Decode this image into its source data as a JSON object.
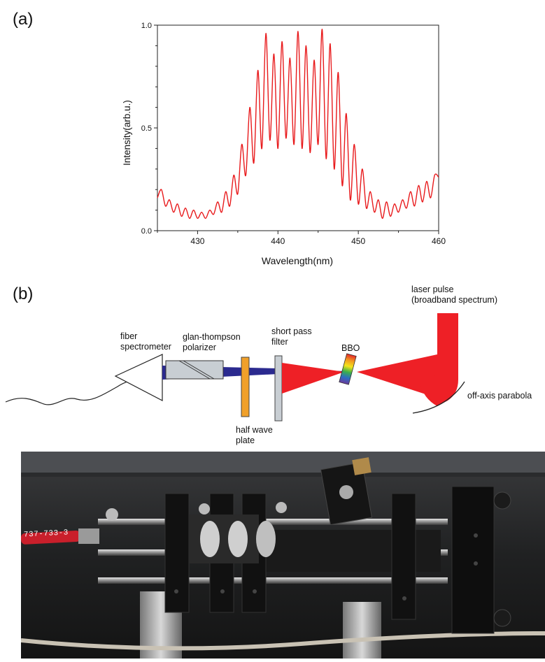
{
  "panels": {
    "a": "(a)",
    "b": "(b)"
  },
  "chart_data": {
    "type": "line",
    "title": "",
    "xlabel": "Wavelength(nm)",
    "ylabel": "Intensity(arb.u.)",
    "xlim": [
      425,
      460
    ],
    "ylim": [
      0.0,
      1.0
    ],
    "xticks": [
      "430",
      "440",
      "450",
      "460"
    ],
    "yticks": [
      "0.0",
      "0.5",
      "1.0"
    ],
    "grid": false,
    "legend": "none",
    "series": [
      {
        "color": "#e8191b",
        "x": [
          425.0,
          425.5,
          426.0,
          426.5,
          427.0,
          427.5,
          428.0,
          428.5,
          429.0,
          429.5,
          430.0,
          430.5,
          431.0,
          431.5,
          432.0,
          432.5,
          433.0,
          433.5,
          434.0,
          434.5,
          435.0,
          435.5,
          436.0,
          436.5,
          437.0,
          437.5,
          438.0,
          438.5,
          439.0,
          439.5,
          440.0,
          440.5,
          441.0,
          441.5,
          442.0,
          442.5,
          443.0,
          443.5,
          444.0,
          444.5,
          445.0,
          445.5,
          446.0,
          446.5,
          447.0,
          447.5,
          448.0,
          448.5,
          449.0,
          449.5,
          450.0,
          450.5,
          451.0,
          451.5,
          452.0,
          452.5,
          453.0,
          453.5,
          454.0,
          454.5,
          455.0,
          455.5,
          456.0,
          456.5,
          457.0,
          457.5,
          458.0,
          458.5,
          459.0,
          459.5,
          460.0
        ],
        "y": [
          0.16,
          0.2,
          0.12,
          0.15,
          0.09,
          0.13,
          0.07,
          0.11,
          0.06,
          0.1,
          0.06,
          0.09,
          0.06,
          0.1,
          0.08,
          0.14,
          0.09,
          0.19,
          0.12,
          0.27,
          0.18,
          0.42,
          0.27,
          0.6,
          0.33,
          0.78,
          0.4,
          0.96,
          0.44,
          0.86,
          0.4,
          0.92,
          0.45,
          0.84,
          0.42,
          0.97,
          0.4,
          0.9,
          0.38,
          0.83,
          0.42,
          0.98,
          0.35,
          0.91,
          0.3,
          0.77,
          0.22,
          0.57,
          0.15,
          0.42,
          0.13,
          0.3,
          0.11,
          0.19,
          0.09,
          0.15,
          0.06,
          0.14,
          0.07,
          0.13,
          0.09,
          0.15,
          0.11,
          0.19,
          0.12,
          0.22,
          0.14,
          0.24,
          0.16,
          0.27,
          0.26
        ]
      }
    ]
  },
  "diagram": {
    "labels": {
      "fiber": "fiber\nspectrometer",
      "glan": "glan-thompson\npolarizer",
      "shortpass": "short pass\nfilter",
      "bbo": "BBO",
      "laser": "laser pulse\n(broadband spectrum)",
      "parabola": "off-axis parabola",
      "halfwave": "half wave\nplate"
    },
    "colors": {
      "laser_red": "#ee2026",
      "blue_beam": "#2b2a8f",
      "polarizer_gray": "#c8ced3",
      "filter_gray": "#c8ced3",
      "waveplate_orange": "#f0a02a"
    }
  },
  "photo": {
    "fiber_cable_text": "737-733-3"
  }
}
